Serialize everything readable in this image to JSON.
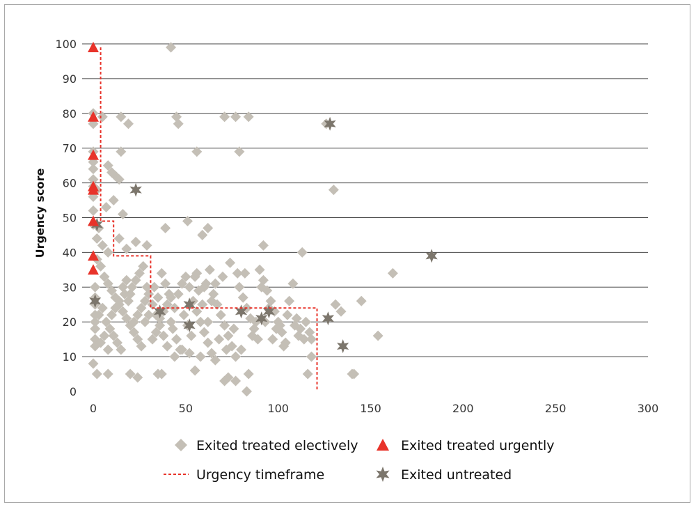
{
  "chart_data": {
    "type": "scatter",
    "ylabel": "Urgency score",
    "xlim": [
      0,
      300
    ],
    "ylim": [
      0,
      100
    ],
    "x_ticks": [
      0,
      50,
      100,
      150,
      200,
      250,
      300
    ],
    "y_ticks": [
      0,
      10,
      20,
      30,
      40,
      50,
      60,
      70,
      80,
      90,
      100
    ],
    "grid": "horizontal",
    "legend_position": "bottom",
    "colors": {
      "elective": "#c4bfb6",
      "urgent": "#e8332a",
      "untreated": "#7c766c",
      "timeframe": "#e8332a",
      "grid": "#444444"
    },
    "series": [
      {
        "name": "Exited treated electively",
        "marker": "diamond",
        "points": [
          [
            42,
            99
          ],
          [
            0,
            80
          ],
          [
            0,
            77
          ],
          [
            5,
            79
          ],
          [
            15,
            79
          ],
          [
            19,
            77
          ],
          [
            45,
            79
          ],
          [
            46,
            77
          ],
          [
            71,
            79
          ],
          [
            77,
            79
          ],
          [
            84,
            79
          ],
          [
            126,
            77
          ],
          [
            0,
            69
          ],
          [
            15,
            69
          ],
          [
            56,
            69
          ],
          [
            79,
            69
          ],
          [
            0,
            66
          ],
          [
            0,
            64
          ],
          [
            8,
            65
          ],
          [
            10,
            63
          ],
          [
            12,
            62
          ],
          [
            14,
            61
          ],
          [
            0,
            61
          ],
          [
            0,
            59
          ],
          [
            2,
            58
          ],
          [
            130,
            58
          ],
          [
            0,
            56
          ],
          [
            11,
            55
          ],
          [
            7,
            53
          ],
          [
            0,
            52
          ],
          [
            16,
            51
          ],
          [
            51,
            49
          ],
          [
            62,
            47
          ],
          [
            59,
            45
          ],
          [
            39,
            47
          ],
          [
            0,
            48
          ],
          [
            3,
            47
          ],
          [
            92,
            42
          ],
          [
            113,
            40
          ],
          [
            2,
            44
          ],
          [
            5,
            42
          ],
          [
            8,
            40
          ],
          [
            14,
            44
          ],
          [
            18,
            41
          ],
          [
            23,
            43
          ],
          [
            29,
            42
          ],
          [
            162,
            34
          ],
          [
            145,
            26
          ],
          [
            154,
            16
          ],
          [
            131,
            25
          ],
          [
            134,
            23
          ],
          [
            141,
            5
          ],
          [
            140,
            5
          ],
          [
            2,
            38
          ],
          [
            4,
            36
          ],
          [
            6,
            33
          ],
          [
            8,
            31
          ],
          [
            10,
            29
          ],
          [
            12,
            27
          ],
          [
            14,
            25
          ],
          [
            16,
            23
          ],
          [
            18,
            21
          ],
          [
            20,
            19
          ],
          [
            22,
            17
          ],
          [
            24,
            15
          ],
          [
            26,
            13
          ],
          [
            28,
            20
          ],
          [
            30,
            22
          ],
          [
            3,
            22
          ],
          [
            5,
            24
          ],
          [
            7,
            20
          ],
          [
            9,
            18
          ],
          [
            11,
            16
          ],
          [
            13,
            14
          ],
          [
            15,
            12
          ],
          [
            17,
            28
          ],
          [
            19,
            26
          ],
          [
            21,
            30
          ],
          [
            23,
            32
          ],
          [
            25,
            34
          ],
          [
            27,
            36
          ],
          [
            29,
            30
          ],
          [
            1,
            30
          ],
          [
            1,
            27
          ],
          [
            1,
            25
          ],
          [
            1,
            22
          ],
          [
            1,
            20
          ],
          [
            1,
            18
          ],
          [
            1,
            15
          ],
          [
            1,
            13
          ],
          [
            0,
            8
          ],
          [
            2,
            5
          ],
          [
            8,
            5
          ],
          [
            20,
            5
          ],
          [
            24,
            4
          ],
          [
            35,
            5
          ],
          [
            37,
            5
          ],
          [
            55,
            6
          ],
          [
            73,
            4
          ],
          [
            77,
            3
          ],
          [
            83,
            0
          ],
          [
            84,
            5
          ],
          [
            32,
            25
          ],
          [
            34,
            22
          ],
          [
            36,
            19
          ],
          [
            38,
            16
          ],
          [
            40,
            13
          ],
          [
            42,
            20
          ],
          [
            44,
            24
          ],
          [
            46,
            28
          ],
          [
            48,
            31
          ],
          [
            50,
            33
          ],
          [
            52,
            30
          ],
          [
            54,
            26
          ],
          [
            56,
            23
          ],
          [
            58,
            20
          ],
          [
            60,
            17
          ],
          [
            62,
            14
          ],
          [
            64,
            11
          ],
          [
            33,
            30
          ],
          [
            35,
            27
          ],
          [
            37,
            34
          ],
          [
            39,
            31
          ],
          [
            41,
            28
          ],
          [
            43,
            18
          ],
          [
            45,
            15
          ],
          [
            47,
            12
          ],
          [
            49,
            22
          ],
          [
            51,
            19
          ],
          [
            53,
            16
          ],
          [
            55,
            33
          ],
          [
            57,
            29
          ],
          [
            59,
            25
          ],
          [
            61,
            31
          ],
          [
            63,
            35
          ],
          [
            65,
            28
          ],
          [
            67,
            25
          ],
          [
            69,
            22
          ],
          [
            71,
            19
          ],
          [
            73,
            16
          ],
          [
            75,
            13
          ],
          [
            77,
            10
          ],
          [
            79,
            30
          ],
          [
            81,
            27
          ],
          [
            83,
            24
          ],
          [
            85,
            21
          ],
          [
            87,
            18
          ],
          [
            89,
            15
          ],
          [
            66,
            31
          ],
          [
            70,
            33
          ],
          [
            74,
            37
          ],
          [
            78,
            34
          ],
          [
            82,
            34
          ],
          [
            90,
            35
          ],
          [
            92,
            32
          ],
          [
            94,
            29
          ],
          [
            96,
            26
          ],
          [
            98,
            23
          ],
          [
            100,
            20
          ],
          [
            102,
            17
          ],
          [
            104,
            14
          ],
          [
            106,
            26
          ],
          [
            108,
            31
          ],
          [
            110,
            21
          ],
          [
            112,
            18
          ],
          [
            114,
            15
          ],
          [
            116,
            5
          ],
          [
            118,
            15
          ],
          [
            118,
            10
          ],
          [
            91,
            30
          ],
          [
            93,
            20
          ],
          [
            95,
            24
          ],
          [
            99,
            18
          ],
          [
            105,
            22
          ],
          [
            109,
            19
          ],
          [
            111,
            16
          ],
          [
            115,
            20
          ],
          [
            117,
            17
          ],
          [
            101,
            19
          ],
          [
            103,
            13
          ],
          [
            97,
            15
          ],
          [
            68,
            15
          ],
          [
            72,
            12
          ],
          [
            76,
            18
          ],
          [
            80,
            12
          ],
          [
            86,
            16
          ],
          [
            88,
            20
          ],
          [
            71,
            3
          ],
          [
            66,
            9
          ],
          [
            58,
            10
          ],
          [
            52,
            11
          ],
          [
            48,
            12
          ],
          [
            44,
            10
          ],
          [
            62,
            20
          ],
          [
            64,
            26
          ],
          [
            60,
            30
          ],
          [
            56,
            34
          ],
          [
            4,
            14
          ],
          [
            6,
            16
          ],
          [
            8,
            12
          ],
          [
            10,
            22
          ],
          [
            12,
            24
          ],
          [
            14,
            26
          ],
          [
            16,
            30
          ],
          [
            18,
            32
          ],
          [
            20,
            28
          ],
          [
            22,
            20
          ],
          [
            24,
            22
          ],
          [
            26,
            24
          ],
          [
            28,
            26
          ],
          [
            30,
            28
          ],
          [
            32,
            15
          ],
          [
            34,
            17
          ],
          [
            36,
            21
          ],
          [
            38,
            23
          ],
          [
            40,
            25
          ],
          [
            42,
            27
          ]
        ]
      },
      {
        "name": "Exited treated urgently",
        "marker": "triangle",
        "points": [
          [
            0,
            99
          ],
          [
            0,
            79
          ],
          [
            0,
            68
          ],
          [
            0,
            59
          ],
          [
            0,
            58
          ],
          [
            0,
            49
          ],
          [
            0,
            39
          ],
          [
            0,
            35
          ]
        ]
      },
      {
        "name": "Urgency timeframe",
        "marker": "dashed-line",
        "points": [
          [
            4,
            99
          ],
          [
            4,
            49
          ],
          [
            11,
            49
          ],
          [
            11,
            39
          ],
          [
            31,
            39
          ],
          [
            31,
            24
          ],
          [
            121,
            24
          ],
          [
            121,
            0
          ]
        ]
      },
      {
        "name": "Exited untreated",
        "marker": "star",
        "points": [
          [
            128,
            77
          ],
          [
            23,
            58
          ],
          [
            2,
            48
          ],
          [
            183,
            39
          ],
          [
            1,
            26
          ],
          [
            36,
            23
          ],
          [
            52,
            25
          ],
          [
            80,
            23
          ],
          [
            95,
            23
          ],
          [
            91,
            21
          ],
          [
            127,
            21
          ],
          [
            52,
            19
          ],
          [
            135,
            13
          ]
        ]
      }
    ]
  }
}
